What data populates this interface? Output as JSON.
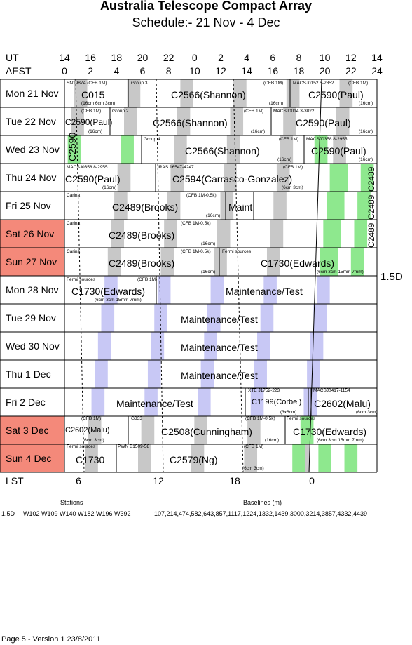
{
  "title": "Australia Telescope Compact Array",
  "subtitle": "Schedule:- 21 Nov - 4  Dec",
  "ut_label": "UT",
  "aest_label": "AEST",
  "lst_label": "LST",
  "ut_ticks": [
    "14",
    "16",
    "18",
    "20",
    "22",
    "0",
    "2",
    "4",
    "6",
    "8",
    "10",
    "12",
    "14"
  ],
  "aest_ticks": [
    "0",
    "2",
    "4",
    "6",
    "8",
    "10",
    "12",
    "14",
    "16",
    "18",
    "20",
    "22",
    "24"
  ],
  "lst_ticks": [
    "6",
    "12",
    "18",
    "0"
  ],
  "days": [
    {
      "label": "Mon  21 Nov",
      "weekend": false
    },
    {
      "label": "Tue  22 Nov",
      "weekend": false
    },
    {
      "label": "Wed  23 Nov",
      "weekend": false
    },
    {
      "label": "Thu  24 Nov",
      "weekend": false
    },
    {
      "label": "Fri   25 Nov",
      "weekend": false
    },
    {
      "label": "Sat   26 Nov",
      "weekend": true
    },
    {
      "label": "Sun  27 Nov",
      "weekend": true
    },
    {
      "label": "Mon  28 Nov",
      "weekend": false
    },
    {
      "label": "Tue  29 Nov",
      "weekend": false
    },
    {
      "label": "Wed  30 Nov",
      "weekend": false
    },
    {
      "label": "Thu   1  Dec",
      "weekend": false
    },
    {
      "label": "Fri    2  Dec",
      "weekend": false
    },
    {
      "label": "Sat    3  Dec",
      "weekend": true
    },
    {
      "label": "Sun   4  Dec",
      "weekend": true
    }
  ],
  "config_label": "1.5D",
  "bookings": {
    "r0": {
      "a": "C015",
      "a_top": "SN1987A  (CFB 1M)",
      "a_sub": "(16cm 6cm 3cm)",
      "b": "C2566(Shannon)",
      "b_top": "Group 3",
      "b_top2": "(CFB 1M)",
      "b_sub": "(16cm)",
      "c": "C2590(Paul)",
      "c_top": "MACSJ0152.5-2852",
      "c_top2": "(CFB 1M)",
      "c_sub": "(16cm)"
    },
    "r1": {
      "a": "C2590(Paul)",
      "a_top": "(CFB 1M)",
      "a_sub": "(16cm)",
      "b": "C2566(Shannon)",
      "b_top": "Group 2",
      "b_top2": "(CFB 1M)",
      "b_sub": "(16cm)",
      "c": "C2590(Paul)",
      "c_top": "MACSJ0014.3-3022",
      "c_sub": "(16cm)"
    },
    "r2": {
      "a": "C2590",
      "b": "C2566(Shannon)",
      "b_top": "Group 4",
      "b_sub": "(16cm)",
      "c": "C2590(Paul)",
      "c_top": "(CFB 1M)",
      "c_top2": "MACSJ0358.8-2955",
      "c_sub": "(16cm)"
    },
    "r3": {
      "a": "C2590(Paul)",
      "a_top": "MACSJ0358.8-2955",
      "a_sub": "(16cm)",
      "b": "C2594(Carrasco-Gonzalez)",
      "b_top": "IRAS 16547-4247",
      "b_top2": "(CFB 1M)",
      "b_sub": "(6cm 3cm)",
      "c": "C2489"
    },
    "r4": {
      "a": "C2489(Brooks)",
      "a_top": "Carina",
      "a_top2": "(CFB 1M-0.5k)",
      "a_sub": "(16cm)",
      "b": "Maint",
      "c": "C2489"
    },
    "r5": {
      "a": "C2489(Brooks)",
      "a_top": "Carina",
      "a_top2": "(CFB 1M-0.5k)",
      "a_sub": "(16cm)",
      "c": "C2489"
    },
    "r6": {
      "a": "C2489(Brooks)",
      "a_top": "Carina",
      "a_top2": "(CFB 1M-0.5k)",
      "a_sub": "(16cm)",
      "b": "C1730(Edwards)",
      "b_top": "Fermi sources",
      "b_sub": "(6cm 3cm 15mm 7mm)"
    },
    "r7": {
      "a": "C1730(Edwards)",
      "a_top": "Fermi sources",
      "a_top2": "(CFB 1M)",
      "a_sub": "(6cm 3cm 15mm 7mm)",
      "b": "Maintenance/Test"
    },
    "r8": {
      "a": "Maintenance/Test"
    },
    "r9": {
      "a": "Maintenance/Test"
    },
    "r10": {
      "a": "Maintenance/Test"
    },
    "r11": {
      "a": "Maintenance/Test",
      "b": "C1199(Corbel)",
      "b_top": "XTE J1752-223",
      "b_sub": "(3x6cm)",
      "c": "C2602(Malu)",
      "c_top": "MACSJ0417-1154",
      "c_sub": "(6cm 3cm)"
    },
    "r12": {
      "a": "C2602(Malu)",
      "a_top": "(CFB 1M)",
      "a_sub": "(6cm 3cm)",
      "b": "C2508(Cunningham)",
      "b_top": "G333",
      "b_top2": "(CFB 1M-0.5k)",
      "b_sub": "(16cm)",
      "c": "C1730(Edwards)",
      "c_top": "Fermi sources",
      "c_sub": "(6cm 3cm 15mm 7mm)"
    },
    "r13": {
      "a": "C1730",
      "a_top": "Fermi sources",
      "b": "C2579(Ng)",
      "b_top": "PWN B1509-58",
      "b_top2": "(CFB 1M)",
      "b_sub": "(6cm 3cm)"
    }
  },
  "colors": {
    "weekend": "#f4897a",
    "grey": "#c8c8c8",
    "blue": "#c8c8f5",
    "green": "#8ee88e",
    "grid": "#000000"
  },
  "footer": {
    "stations_label": "Stations",
    "baselines_label": "Baselines (m)",
    "config": "1.5D",
    "stations": "W102 W109 W140 W182 W196 W392",
    "baselines": "107,214,474,582,643,857,1117,1224,1332,1439,3000,3214,3857,4332,4439",
    "page": "Page 5 - Version 1  23/8/2011"
  }
}
